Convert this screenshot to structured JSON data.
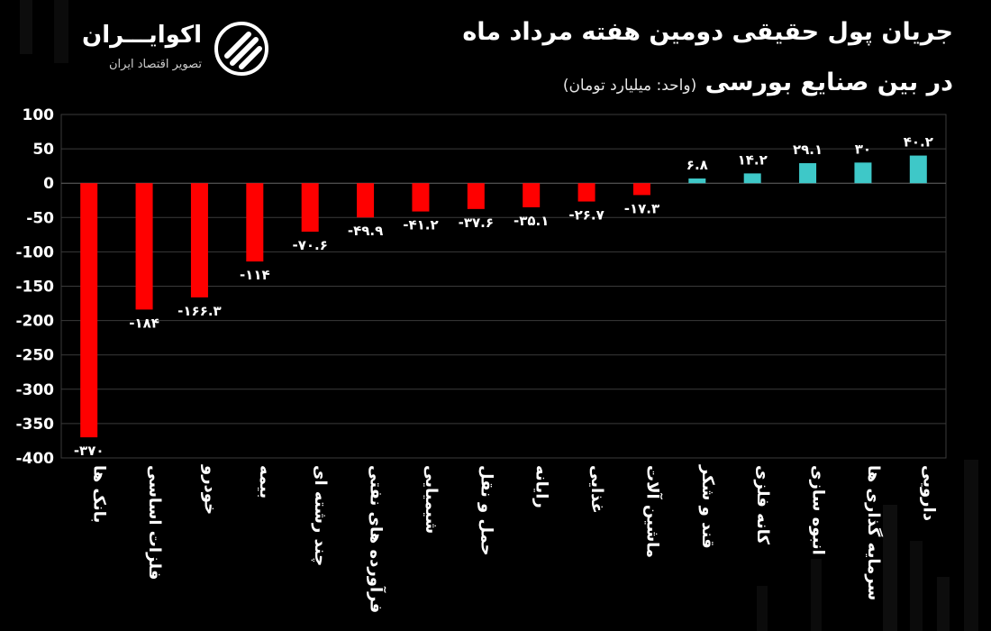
{
  "header": {
    "title_line1": "جریان پول حقیقی دومین هفته مرداد ماه",
    "title_line2": "در بین صنایع بورسی",
    "unit_note": "(واحد: میلیارد تومان)"
  },
  "logo": {
    "name": "اکوایـــران",
    "tagline": "تصویر اقتصاد ایران"
  },
  "colors": {
    "negative": "#ff0000",
    "positive": "#3ec8c8",
    "grid": "#3a3a3a",
    "text": "#ffffff"
  },
  "chart_data": {
    "type": "bar",
    "title": "جریان پول حقیقی دومین هفته مرداد ماه در بین صنایع بورسی",
    "ylabel": "(واحد: میلیارد تومان)",
    "ylim": [
      -400,
      100
    ],
    "yticks": [
      100,
      50,
      0,
      -50,
      -100,
      -150,
      -200,
      -250,
      -300,
      -350,
      -400
    ],
    "ytick_labels": [
      "100",
      "50",
      "0",
      "-50",
      "-100",
      "-150",
      "-200",
      "-250",
      "-300",
      "-350",
      "-400"
    ],
    "grid": true,
    "categories": [
      "بانک ها",
      "فلزات اساسی",
      "خودرو",
      "بیمه",
      "چند رشته ای",
      "فرآورده های نفتی",
      "شیمیایی",
      "حمل و نقل",
      "رایانه",
      "غذایی",
      "ماشین آلات",
      "قند و شکر",
      "کانه فلزی",
      "انبوه سازی",
      "سرمایه گذاری ها",
      "دارویی"
    ],
    "values": [
      -370,
      -184,
      -166.3,
      -114,
      -70.6,
      -49.9,
      -41.2,
      -37.6,
      -35.1,
      -26.7,
      -17.3,
      6.8,
      14.2,
      29.1,
      30,
      40.2
    ],
    "value_labels": [
      "-۳۷۰",
      "-۱۸۴",
      "-۱۶۶.۳",
      "-۱۱۴",
      "-۷۰.۶",
      "-۴۹.۹",
      "-۴۱.۲",
      "-۳۷.۶",
      "-۳۵.۱",
      "-۲۶.۷",
      "-۱۷.۳",
      "۶.۸",
      "۱۴.۲",
      "۲۹.۱",
      "۳۰",
      "۴۰.۲"
    ]
  }
}
